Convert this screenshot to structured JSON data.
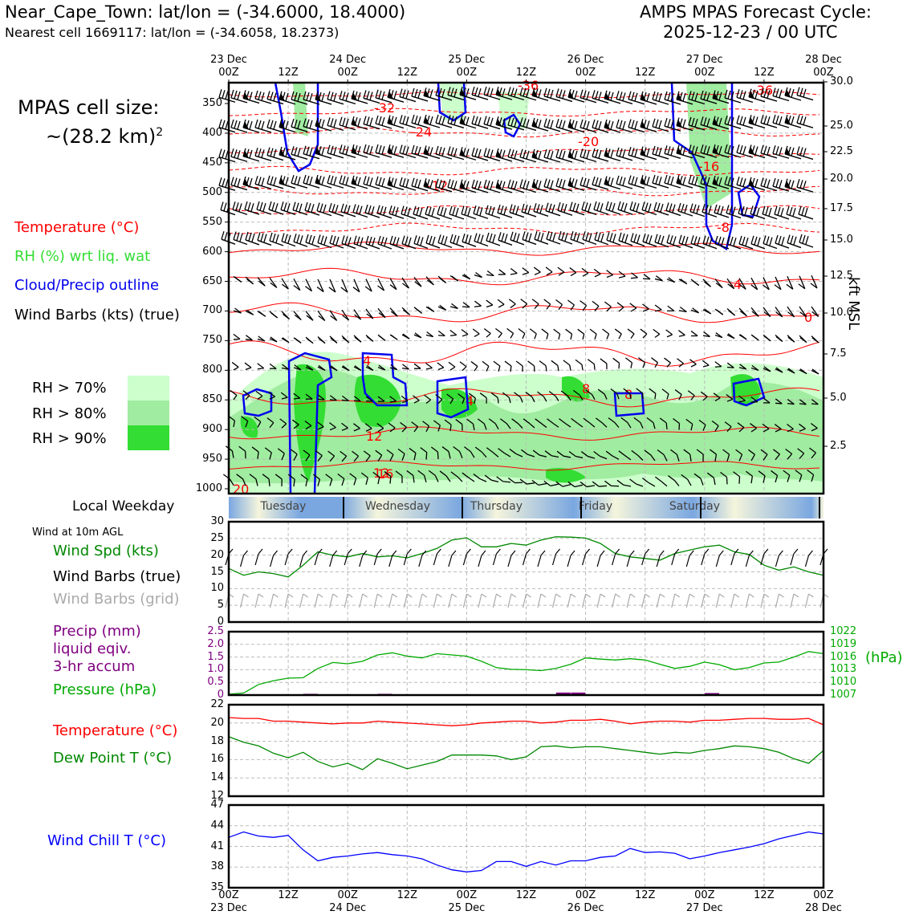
{
  "header": {
    "station": "Near_Cape_Town: lat/lon = (-34.6000, 18.4000)",
    "nearest": "Nearest cell 1669117: lat/lon = (-34.6058, 18.2373)",
    "cycle_title": "AMPS MPAS Forecast Cycle:",
    "cycle": "2025-12-23 / 00 UTC"
  },
  "cell_size": {
    "line1": "MPAS cell size:",
    "line2": "~(28.2 km)",
    "sup": "2"
  },
  "legend": {
    "temperature": "Temperature (°C)",
    "rh": "RH (%) wrt liq. wat",
    "cloud": "Cloud/Precip outline",
    "wind": "Wind Barbs (kts) (true)",
    "rh70": "RH > 70%",
    "rh80": "RH > 80%",
    "rh90": "RH > 90%"
  },
  "colors": {
    "rh70": "#ccffcc",
    "rh80": "#a0eca0",
    "rh90": "#33dd33",
    "temp": "#ff0000",
    "cloud": "#0000ee",
    "green": "#008800",
    "purple": "#800080",
    "blue": "#0000ff"
  },
  "axis_top": {
    "ticks": [
      {
        "top": "23 Dec",
        "bot": "00Z"
      },
      {
        "top": "",
        "bot": "12Z"
      },
      {
        "top": "24 Dec",
        "bot": "00Z"
      },
      {
        "top": "",
        "bot": "12Z"
      },
      {
        "top": "25 Dec",
        "bot": "00Z"
      },
      {
        "top": "",
        "bot": "12Z"
      },
      {
        "top": "26 Dec",
        "bot": "00Z"
      },
      {
        "top": "",
        "bot": "12Z"
      },
      {
        "top": "27 Dec",
        "bot": "00Z"
      },
      {
        "top": "",
        "bot": "12Z"
      },
      {
        "top": "28 Dec",
        "bot": "00Z"
      }
    ]
  },
  "axis_bottom": {
    "ticks": [
      {
        "top": "00Z",
        "bot": "23 Dec"
      },
      {
        "top": "12Z",
        "bot": ""
      },
      {
        "top": "00Z",
        "bot": "24 Dec"
      },
      {
        "top": "12Z",
        "bot": ""
      },
      {
        "top": "00Z",
        "bot": "25 Dec"
      },
      {
        "top": "12Z",
        "bot": ""
      },
      {
        "top": "00Z",
        "bot": "26 Dec"
      },
      {
        "top": "12Z",
        "bot": ""
      },
      {
        "top": "00Z",
        "bot": "27 Dec"
      },
      {
        "top": "12Z",
        "bot": ""
      },
      {
        "top": "00Z",
        "bot": "28 Dec"
      }
    ]
  },
  "weekday": {
    "label": "Local Weekday",
    "days": [
      "Tuesday",
      "Wednesday",
      "Thursday",
      "Friday",
      "Saturday"
    ]
  },
  "wind10": {
    "title": "Wind at 10m AGL",
    "spd": "Wind Spd (kts)",
    "barbs_true": "Wind Barbs (true)",
    "barbs_grid": "Wind Barbs (grid)"
  },
  "precip_legend": {
    "l1": "Precip (mm)",
    "l2": "liquid eqiv.",
    "l3": "3-hr accum",
    "pressure": "Pressure (hPa)",
    "unit": "(hPa)"
  },
  "temp_legend": {
    "temp": "Temperature (°C)",
    "dew": "Dew Point T (°C)"
  },
  "chill_legend": {
    "label": "Wind Chill T (°C)"
  },
  "rh_axis_label": "kft MSL",
  "chart_data": [
    {
      "type": "heatmap",
      "title": "Time-height cross section",
      "pressure_levels": [
        350,
        400,
        450,
        500,
        550,
        600,
        650,
        700,
        750,
        800,
        850,
        900,
        950,
        1000
      ],
      "kft_ticks": [
        "30.0",
        "25.0",
        "22.5",
        "20.0",
        "17.5",
        "15.0",
        "12.5",
        "10.0",
        "7.5",
        "5.0",
        "2.5"
      ],
      "temperature_contour_labels": [
        "-36",
        "-36",
        "-32",
        "-24",
        "-20",
        "-16",
        "-12",
        "-8",
        "-4",
        "0",
        "4",
        "4",
        "8",
        "8",
        "12",
        "12",
        "16",
        "20"
      ]
    },
    {
      "type": "line",
      "title": "Wind at 10m AGL",
      "x_hours": [
        0,
        3,
        6,
        9,
        12,
        15,
        18,
        21,
        24,
        27,
        30,
        33,
        36,
        39,
        42,
        45,
        48,
        51,
        54,
        57,
        60,
        63,
        66,
        69,
        72,
        75,
        78,
        81,
        84,
        87,
        90,
        93,
        96,
        99,
        102,
        105,
        108,
        111,
        114,
        117,
        120
      ],
      "series": [
        {
          "name": "Wind Spd (kts)",
          "values": [
            16,
            14,
            15,
            14.5,
            13.5,
            17,
            21,
            20,
            19.5,
            20.5,
            19.5,
            19.8,
            19.2,
            20.5,
            22,
            24.5,
            25.2,
            22.5,
            22.5,
            23.5,
            23,
            24.5,
            25.5,
            25.4,
            25.1,
            23.5,
            20.5,
            19.5,
            19,
            18.5,
            20.5,
            21.5,
            22.5,
            23,
            21,
            20.2,
            17,
            15.5,
            16.5,
            15,
            14
          ]
        }
      ],
      "ylim": [
        0,
        30
      ],
      "yticks": [
        "0",
        "5",
        "10",
        "15",
        "20",
        "25",
        "30"
      ]
    },
    {
      "type": "bar",
      "title": "Precip and Pressure",
      "precip_bars": [
        {
          "hour": 16.5,
          "value": 0.05
        },
        {
          "hour": 31.5,
          "value": 0.05
        },
        {
          "hour": 67.5,
          "value": 0.1
        },
        {
          "hour": 70.5,
          "value": 0.1
        },
        {
          "hour": 97.5,
          "value": 0.08
        }
      ],
      "pressure_values": [
        1007.2,
        1007.5,
        1009.5,
        1010.4,
        1011,
        1011.1,
        1013.3,
        1014.7,
        1014.4,
        1015,
        1016.5,
        1017,
        1016.2,
        1015.8,
        1016.8,
        1016.5,
        1016.2,
        1015,
        1013.5,
        1013.1,
        1013,
        1012.8,
        1013.3,
        1014.3,
        1015.8,
        1015.5,
        1015.3,
        1015.6,
        1015.3,
        1014.3,
        1013.3,
        1013.8,
        1014.8,
        1014.2,
        1013,
        1013.5,
        1014.6,
        1014.8,
        1016,
        1017.3,
        1016.8
      ],
      "precip_ylim": [
        0,
        2.5
      ],
      "precip_yticks": [
        "0",
        "0.5",
        "1.0",
        "1.5",
        "2.0",
        "2.5"
      ],
      "pressure_ylim": [
        1007,
        1022
      ],
      "pressure_yticks": [
        "1007",
        "1010",
        "1013",
        "1016",
        "1019",
        "1022"
      ]
    },
    {
      "type": "line",
      "title": "Temperature and Dew Point",
      "series": [
        {
          "name": "Temperature (°C)",
          "values": [
            20.6,
            20.5,
            20.5,
            20.2,
            20.2,
            20.1,
            20,
            19.9,
            20,
            20,
            20.2,
            20.1,
            20,
            19.9,
            19.8,
            19.7,
            19.8,
            20,
            20.1,
            20.2,
            20.2,
            20,
            20.1,
            20.3,
            20.3,
            20.4,
            20.2,
            19.9,
            20.1,
            20.2,
            20.2,
            20.1,
            20.3,
            20.3,
            20.4,
            20.5,
            20.5,
            20.4,
            20.4,
            20.5,
            19.8
          ]
        },
        {
          "name": "Dew Point T (°C)",
          "values": [
            18.5,
            17.9,
            17.5,
            16.7,
            16.2,
            16.8,
            15.8,
            15.2,
            15.6,
            14.9,
            16.1,
            15.6,
            15,
            15.4,
            15.8,
            16.5,
            16.5,
            16.5,
            16.4,
            16,
            16.3,
            17.4,
            17.5,
            17.3,
            17.4,
            17.4,
            17.2,
            17,
            16.8,
            16.6,
            16.8,
            16.7,
            17,
            17.2,
            17.5,
            17.4,
            17.2,
            16.8,
            16.1,
            15.6,
            17
          ]
        }
      ],
      "ylim": [
        12,
        22
      ],
      "yticks": [
        "12",
        "14",
        "16",
        "18",
        "20",
        "22"
      ]
    },
    {
      "type": "line",
      "title": "Wind Chill T",
      "series": [
        {
          "name": "Wind Chill T (°C)",
          "values": [
            42.3,
            43.1,
            42.5,
            42.3,
            42.6,
            40.5,
            38.9,
            39.4,
            39.6,
            39.9,
            40.1,
            39.8,
            39.6,
            39.2,
            38.3,
            37.6,
            37.3,
            37.5,
            38.8,
            38.8,
            38.1,
            38.8,
            38.3,
            38.9,
            38.9,
            39.4,
            39.6,
            40.7,
            40.1,
            40.2,
            40,
            39.2,
            39.6,
            40.1,
            40.5,
            40.9,
            41.4,
            42.1,
            42.6,
            43.1,
            42.8
          ]
        }
      ],
      "ylim": [
        35,
        47
      ],
      "yticks": [
        "35",
        "38",
        "41",
        "44",
        "47"
      ]
    }
  ]
}
